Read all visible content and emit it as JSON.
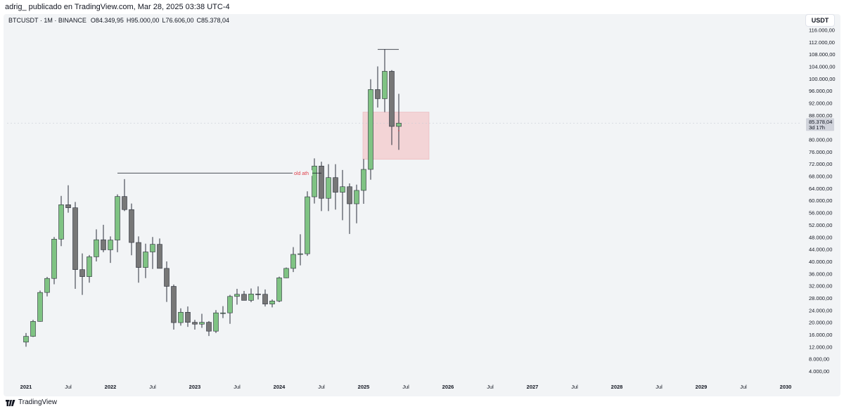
{
  "header": {
    "publisher_line": "adrig_ publicado en TradingView.com, Mar 28, 2025 03:38 UTC-4"
  },
  "legend": {
    "symbol": "BTCUSDT · 1M · BINANCE",
    "open": "O84.349,95",
    "high": "H95.000,00",
    "low": "L76.606,00",
    "close": "C85.378,04"
  },
  "currency_button": "USDT",
  "price_label": {
    "price": "85.378,04",
    "countdown": "3d 17h"
  },
  "footer": {
    "brand": "TradingView"
  },
  "colors": {
    "up": "#7fc383",
    "down": "#777777",
    "zone_fill": "#f3d4d6",
    "zone_border": "#e9b4b8",
    "annotation": "#e0404a"
  },
  "chart_data": {
    "type": "candlestick",
    "interval": "1M",
    "y_ticks": [
      "4.000,00",
      "8.000,00",
      "12.000,00",
      "16.000,00",
      "20.000,00",
      "24.000,00",
      "28.000,00",
      "32.000,00",
      "36.000,00",
      "40.000,00",
      "44.000,00",
      "48.000,00",
      "52.000,00",
      "56.000,00",
      "60.000,00",
      "64.000,00",
      "68.000,00",
      "72.000,00",
      "76.000,00",
      "80.000,00",
      "84.000,00",
      "88.000,00",
      "92.000,00",
      "96.000,00",
      "100.000,00",
      "104.000,00",
      "108.000,00",
      "112.000,00",
      "116.000,00"
    ],
    "y_tick_values": [
      4000,
      8000,
      12000,
      16000,
      20000,
      24000,
      28000,
      32000,
      36000,
      40000,
      44000,
      48000,
      52000,
      56000,
      60000,
      64000,
      68000,
      72000,
      76000,
      80000,
      84000,
      88000,
      92000,
      96000,
      100000,
      104000,
      108000,
      112000,
      116000
    ],
    "x_ticks": [
      {
        "label": "2021",
        "index": 0,
        "bold": true
      },
      {
        "label": "Jul",
        "index": 6,
        "bold": false
      },
      {
        "label": "2022",
        "index": 12,
        "bold": true
      },
      {
        "label": "Jul",
        "index": 18,
        "bold": false
      },
      {
        "label": "2023",
        "index": 24,
        "bold": true
      },
      {
        "label": "Jul",
        "index": 30,
        "bold": false
      },
      {
        "label": "2024",
        "index": 36,
        "bold": true
      },
      {
        "label": "Jul",
        "index": 42,
        "bold": false
      },
      {
        "label": "2025",
        "index": 48,
        "bold": true
      },
      {
        "label": "Jul",
        "index": 54,
        "bold": false
      },
      {
        "label": "2026",
        "index": 60,
        "bold": true
      },
      {
        "label": "Jul",
        "index": 66,
        "bold": false
      },
      {
        "label": "2027",
        "index": 72,
        "bold": true
      },
      {
        "label": "Jul",
        "index": 78,
        "bold": false
      },
      {
        "label": "2028",
        "index": 84,
        "bold": true
      },
      {
        "label": "Jul",
        "index": 90,
        "bold": false
      },
      {
        "label": "2029",
        "index": 96,
        "bold": true
      },
      {
        "label": "Jul",
        "index": 102,
        "bold": false
      },
      {
        "label": "2030",
        "index": 108,
        "bold": true
      }
    ],
    "candles": [
      [
        0,
        13500,
        16500,
        12000,
        15400
      ],
      [
        1,
        15400,
        20800,
        15200,
        20300
      ],
      [
        2,
        20300,
        30400,
        20200,
        29800
      ],
      [
        3,
        29800,
        34900,
        28500,
        34400
      ],
      [
        4,
        34400,
        48000,
        32500,
        47300
      ],
      [
        5,
        47300,
        61500,
        45000,
        58600
      ],
      [
        6,
        58600,
        65000,
        56000,
        57600
      ],
      [
        7,
        57600,
        59500,
        31000,
        37300
      ],
      [
        8,
        37300,
        42600,
        29000,
        35000
      ],
      [
        9,
        35000,
        42100,
        33000,
        41500
      ],
      [
        10,
        41500,
        50500,
        40000,
        47100
      ],
      [
        11,
        47100,
        52000,
        43000,
        43800
      ],
      [
        12,
        43800,
        48200,
        39500,
        47000
      ],
      [
        13,
        47000,
        62000,
        43000,
        61300
      ],
      [
        14,
        61300,
        67000,
        56500,
        57000
      ],
      [
        15,
        57000,
        59000,
        42000,
        46200
      ],
      [
        16,
        46200,
        48200,
        33000,
        38000
      ],
      [
        17,
        38000,
        45800,
        34500,
        43100
      ],
      [
        18,
        43100,
        48000,
        37500,
        45600
      ],
      [
        19,
        45600,
        47500,
        37700,
        37700
      ],
      [
        20,
        37700,
        40000,
        26700,
        31800
      ],
      [
        21,
        31800,
        32400,
        17600,
        19900
      ],
      [
        22,
        19900,
        24600,
        18900,
        23300
      ],
      [
        23,
        23300,
        25200,
        18500,
        20000
      ],
      [
        24,
        20000,
        20800,
        17600,
        19400
      ],
      [
        25,
        19400,
        22800,
        18200,
        20000
      ],
      [
        26,
        20000,
        20400,
        15500,
        17100
      ],
      [
        27,
        17100,
        24000,
        16500,
        23100
      ],
      [
        28,
        23100,
        25300,
        21400,
        23100
      ],
      [
        29,
        23100,
        29000,
        19500,
        28500
      ],
      [
        30,
        28500,
        31000,
        25800,
        29200
      ],
      [
        31,
        29200,
        30300,
        27200,
        27200
      ],
      [
        32,
        27200,
        31100,
        26600,
        29300
      ],
      [
        33,
        29300,
        31800,
        27500,
        29200
      ],
      [
        34,
        29200,
        30800,
        25200,
        26000
      ],
      [
        35,
        26000,
        27500,
        24900,
        27000
      ],
      [
        36,
        27000,
        35000,
        26600,
        34600
      ],
      [
        37,
        34600,
        38000,
        34500,
        37700
      ],
      [
        38,
        37700,
        44700,
        36500,
        42300
      ],
      [
        39,
        42300,
        48900,
        38700,
        42500
      ],
      [
        40,
        42500,
        63000,
        41800,
        61200
      ],
      [
        41,
        61200,
        73800,
        59000,
        71300
      ],
      [
        42,
        71300,
        72700,
        56500,
        60700
      ],
      [
        43,
        60700,
        71900,
        56500,
        67500
      ],
      [
        44,
        67500,
        71900,
        57000,
        62700
      ],
      [
        45,
        62700,
        70000,
        53500,
        64500
      ],
      [
        46,
        64500,
        65600,
        49000,
        58900
      ],
      [
        47,
        58900,
        65200,
        52500,
        63300
      ],
      [
        48,
        63300,
        73600,
        58900,
        70200
      ],
      [
        49,
        70200,
        99800,
        66800,
        96400
      ],
      [
        50,
        96400,
        104000,
        90500,
        93400
      ],
      [
        51,
        93400,
        109600,
        89000,
        102400
      ],
      [
        52,
        102400,
        102800,
        78200,
        84300
      ],
      [
        53,
        84300,
        95000,
        76600,
        85378
      ]
    ],
    "horizontal_lines": [
      {
        "label": "old ath",
        "price": 69000,
        "from_index": 13,
        "to_index": 42
      },
      {
        "label": "",
        "price": 109600,
        "from_index": 50,
        "to_index": 53
      }
    ],
    "zone": {
      "price_top": 89000,
      "price_bottom": 73500,
      "from_index": 48,
      "to_index": 57
    },
    "current_price": 85378.04
  }
}
